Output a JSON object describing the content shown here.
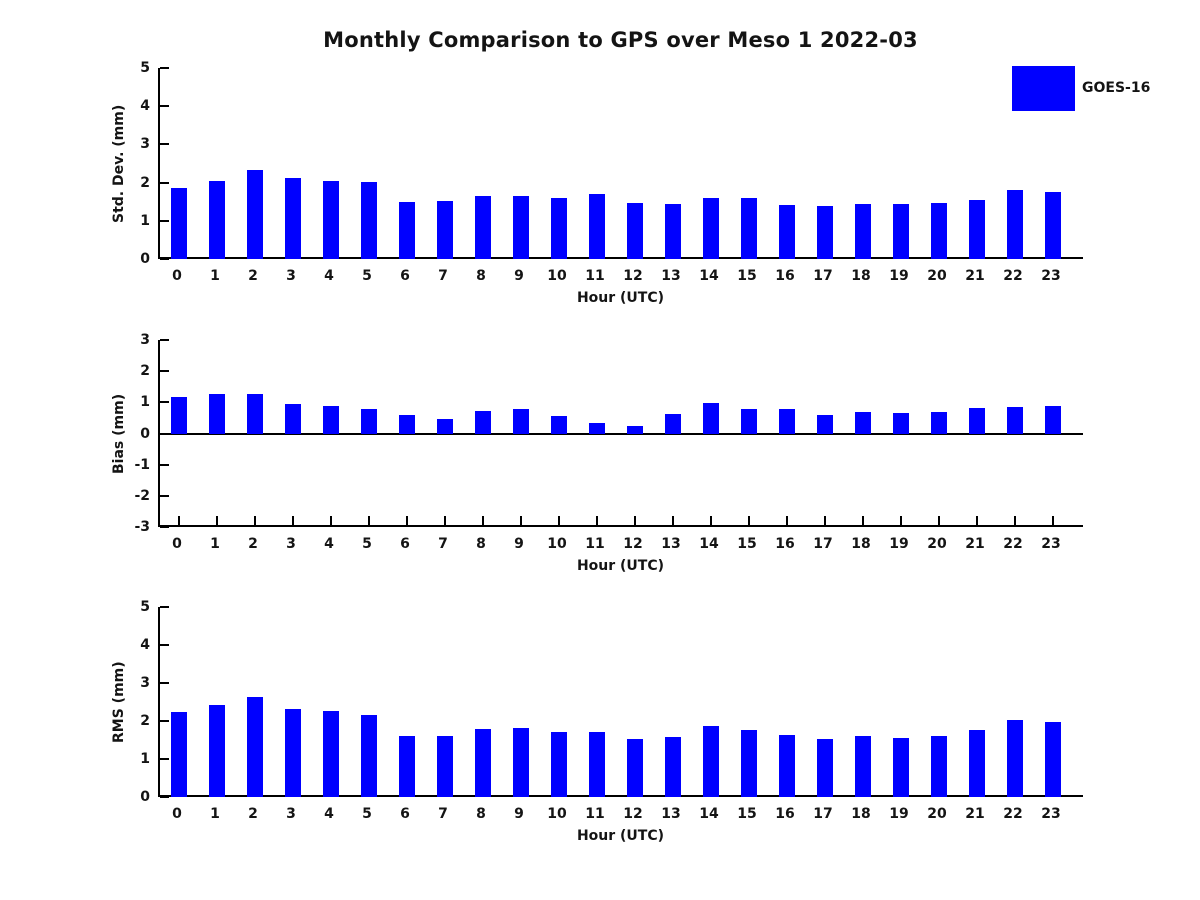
{
  "title": "Monthly Comparison to GPS over Meso 1 2022-03",
  "legend": {
    "label": "GOES-16",
    "color": "#0000ff",
    "position": "top-right"
  },
  "chart_data": [
    {
      "type": "bar",
      "title": "",
      "ylabel": "Std. Dev. (mm)",
      "xlabel": "Hour (UTC)",
      "ylim": [
        0,
        5
      ],
      "yticks": [
        0,
        1,
        2,
        3,
        4,
        5
      ],
      "grid": false,
      "bar_color": "#0000ff",
      "categories": [
        "0",
        "1",
        "2",
        "3",
        "4",
        "5",
        "6",
        "7",
        "8",
        "9",
        "10",
        "11",
        "12",
        "13",
        "14",
        "15",
        "16",
        "17",
        "18",
        "19",
        "20",
        "21",
        "22",
        "23"
      ],
      "series": [
        {
          "name": "GOES-16",
          "values": [
            1.86,
            2.05,
            2.33,
            2.12,
            2.04,
            2.02,
            1.49,
            1.53,
            1.64,
            1.64,
            1.6,
            1.69,
            1.47,
            1.45,
            1.6,
            1.6,
            1.41,
            1.38,
            1.44,
            1.43,
            1.46,
            1.54,
            1.8,
            1.76
          ]
        }
      ]
    },
    {
      "type": "bar",
      "title": "",
      "ylabel": "Bias (mm)",
      "xlabel": "Hour (UTC)",
      "ylim": [
        -3,
        3
      ],
      "yticks": [
        -3,
        -2,
        -1,
        0,
        1,
        2,
        3
      ],
      "grid": false,
      "bar_color": "#0000ff",
      "categories": [
        "0",
        "1",
        "2",
        "3",
        "4",
        "5",
        "6",
        "7",
        "8",
        "9",
        "10",
        "11",
        "12",
        "13",
        "14",
        "15",
        "16",
        "17",
        "18",
        "19",
        "20",
        "21",
        "22",
        "23"
      ],
      "series": [
        {
          "name": "GOES-16",
          "values": [
            1.2,
            1.27,
            1.27,
            0.95,
            0.89,
            0.8,
            0.61,
            0.47,
            0.74,
            0.79,
            0.58,
            0.34,
            0.27,
            0.65,
            1.01,
            0.79,
            0.8,
            0.6,
            0.7,
            0.66,
            0.7,
            0.83,
            0.88,
            0.91
          ]
        }
      ]
    },
    {
      "type": "bar",
      "title": "",
      "ylabel": "RMS (mm)",
      "xlabel": "Hour (UTC)",
      "ylim": [
        0,
        5
      ],
      "yticks": [
        0,
        1,
        2,
        3,
        4,
        5
      ],
      "grid": false,
      "bar_color": "#0000ff",
      "categories": [
        "0",
        "1",
        "2",
        "3",
        "4",
        "5",
        "6",
        "7",
        "8",
        "9",
        "10",
        "11",
        "12",
        "13",
        "14",
        "15",
        "16",
        "17",
        "18",
        "19",
        "20",
        "21",
        "22",
        "23"
      ],
      "series": [
        {
          "name": "GOES-16",
          "values": [
            2.23,
            2.41,
            2.64,
            2.32,
            2.25,
            2.17,
            1.61,
            1.61,
            1.8,
            1.82,
            1.71,
            1.71,
            1.52,
            1.58,
            1.86,
            1.75,
            1.62,
            1.53,
            1.6,
            1.56,
            1.6,
            1.76,
            2.03,
            1.98
          ]
        }
      ]
    }
  ]
}
